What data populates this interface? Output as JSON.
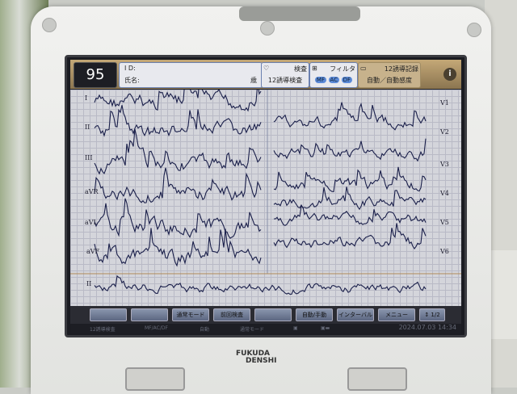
{
  "header": {
    "heart_rate": "95",
    "id_label": "I D:",
    "name_label": "氏名:",
    "age_unit": "歳",
    "exam": {
      "title": "検査",
      "value": "12誘導検査",
      "icon": "heart-12-icon"
    },
    "filter": {
      "title": "フィルタ",
      "options": [
        "MF",
        "AC",
        "DF"
      ],
      "icon": "filter-icon"
    },
    "record": {
      "title": "12誘導記録",
      "value": "自動／自動感度",
      "icon": "record-icon"
    },
    "info": "i"
  },
  "leads": {
    "left": [
      "I",
      "II",
      "III",
      "aVR",
      "aVL",
      "aVF",
      "II"
    ],
    "right": [
      "V1",
      "V2",
      "V3",
      "V4",
      "V5",
      "V6"
    ]
  },
  "footer": {
    "buttons": [
      "",
      "",
      "通常モード",
      "前回検査",
      "",
      "自動/手動",
      "インターバル",
      "メニュー",
      "↕ 1/2"
    ]
  },
  "status": {
    "items": [
      "12誘導検査",
      "MF/AC/DF",
      "自動",
      "通常モード"
    ],
    "datetime": "2024.07.03 14:34"
  },
  "brand": {
    "line1": "FUKUDA",
    "line2": "DENSHI"
  },
  "colors": {
    "trace": "#1a1f4a",
    "grid": "#b9bac6",
    "header": "#b49b6e"
  }
}
